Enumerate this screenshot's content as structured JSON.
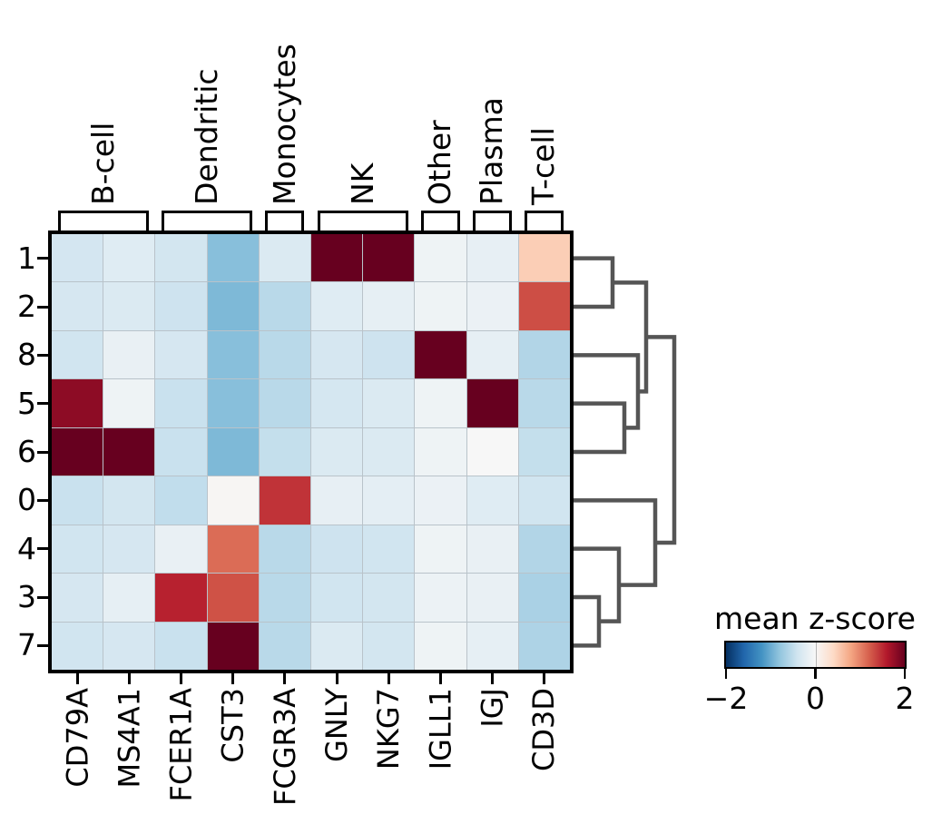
{
  "chart_data": {
    "type": "heatmap",
    "rows": [
      "1",
      "2",
      "8",
      "5",
      "6",
      "0",
      "4",
      "3",
      "7"
    ],
    "columns": [
      "CD79A",
      "MS4A1",
      "FCER1A",
      "CST3",
      "FCGR3A",
      "GNLY",
      "NKG7",
      "IGLL1",
      "IGJ",
      "CD3D"
    ],
    "column_groups": [
      {
        "label": "B-cell",
        "start": 0,
        "end": 1
      },
      {
        "label": "Dendritic",
        "start": 2,
        "end": 3
      },
      {
        "label": "Monocytes",
        "start": 4,
        "end": 4
      },
      {
        "label": "NK",
        "start": 5,
        "end": 6
      },
      {
        "label": "Other",
        "start": 7,
        "end": 7
      },
      {
        "label": "Plasma",
        "start": 8,
        "end": 8
      },
      {
        "label": "T-cell",
        "start": 9,
        "end": 9
      }
    ],
    "values": [
      [
        -0.37,
        -0.25,
        -0.38,
        -0.85,
        -0.3,
        2.0,
        2.0,
        -0.1,
        -0.17,
        0.5
      ],
      [
        -0.35,
        -0.3,
        -0.42,
        -0.9,
        -0.55,
        -0.25,
        -0.18,
        -0.1,
        -0.13,
        1.3
      ],
      [
        -0.4,
        -0.15,
        -0.35,
        -0.85,
        -0.55,
        -0.35,
        -0.42,
        2.0,
        -0.18,
        -0.6
      ],
      [
        1.8,
        -0.1,
        -0.45,
        -0.85,
        -0.55,
        -0.36,
        -0.3,
        -0.1,
        2.0,
        -0.55
      ],
      [
        2.0,
        2.0,
        -0.45,
        -0.9,
        -0.48,
        -0.3,
        -0.3,
        -0.1,
        0.0,
        -0.48
      ],
      [
        -0.45,
        -0.38,
        -0.5,
        0.03,
        1.45,
        -0.17,
        -0.2,
        -0.13,
        -0.25,
        -0.4
      ],
      [
        -0.4,
        -0.35,
        -0.15,
        1.13,
        -0.55,
        -0.42,
        -0.4,
        -0.1,
        -0.15,
        -0.6
      ],
      [
        -0.35,
        -0.18,
        1.55,
        1.28,
        -0.55,
        -0.4,
        -0.38,
        -0.12,
        -0.15,
        -0.65
      ],
      [
        -0.4,
        -0.35,
        -0.45,
        2.0,
        -0.55,
        -0.3,
        -0.38,
        -0.1,
        -0.18,
        -0.62
      ]
    ],
    "vmin": -2,
    "vmax": 2,
    "colormap": {
      "name": "RdBu_r",
      "stops": [
        {
          "v": -2.0,
          "c": "#053061"
        },
        {
          "v": -1.6,
          "c": "#2166ac"
        },
        {
          "v": -1.2,
          "c": "#4393c3"
        },
        {
          "v": -0.8,
          "c": "#92c5de"
        },
        {
          "v": -0.4,
          "c": "#d1e5f0"
        },
        {
          "v": 0.0,
          "c": "#f7f7f7"
        },
        {
          "v": 0.4,
          "c": "#fddbc7"
        },
        {
          "v": 0.8,
          "c": "#f4a582"
        },
        {
          "v": 1.2,
          "c": "#d6604d"
        },
        {
          "v": 1.6,
          "c": "#b2182b"
        },
        {
          "v": 2.0,
          "c": "#67001f"
        }
      ]
    },
    "colorbar": {
      "title": "mean z-score",
      "tick_labels": [
        "−2",
        "0",
        "2"
      ],
      "tick_values": [
        -2,
        0,
        2
      ]
    },
    "row_dendrogram": {
      "color": "#555555",
      "line_width": 4.5,
      "merges": [
        {
          "id": "A",
          "a": {
            "type": "leaf",
            "row": 0
          },
          "b": {
            "type": "leaf",
            "row": 1
          },
          "depth": 43
        },
        {
          "id": "B",
          "a": {
            "type": "leaf",
            "row": 3
          },
          "b": {
            "type": "leaf",
            "row": 4
          },
          "depth": 56
        },
        {
          "id": "C",
          "a": {
            "type": "leaf",
            "row": 2
          },
          "b": {
            "type": "merge",
            "ref": "B"
          },
          "depth": 71
        },
        {
          "id": "D",
          "a": {
            "type": "merge",
            "ref": "A"
          },
          "b": {
            "type": "merge",
            "ref": "C"
          },
          "depth": 80
        },
        {
          "id": "E",
          "a": {
            "type": "leaf",
            "row": 7
          },
          "b": {
            "type": "leaf",
            "row": 8
          },
          "depth": 28
        },
        {
          "id": "F",
          "a": {
            "type": "leaf",
            "row": 6
          },
          "b": {
            "type": "merge",
            "ref": "E"
          },
          "depth": 50
        },
        {
          "id": "G",
          "a": {
            "type": "leaf",
            "row": 5
          },
          "b": {
            "type": "merge",
            "ref": "F"
          },
          "depth": 90
        },
        {
          "id": "H",
          "a": {
            "type": "merge",
            "ref": "D"
          },
          "b": {
            "type": "merge",
            "ref": "G"
          },
          "depth": 111
        }
      ]
    }
  }
}
